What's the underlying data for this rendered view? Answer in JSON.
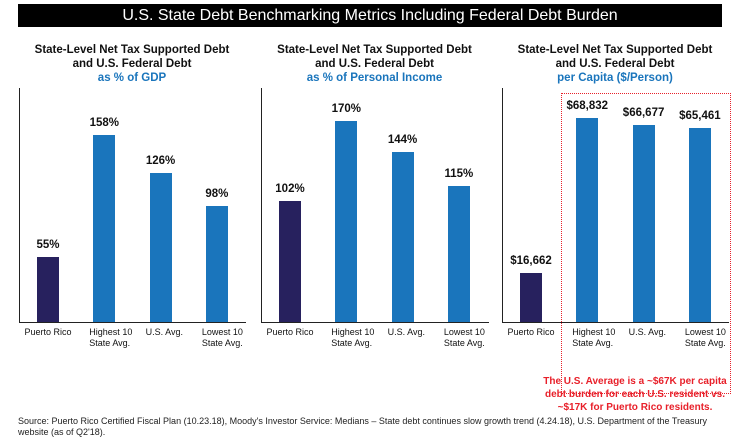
{
  "title": "U.S. State Debt Benchmarking Metrics Including Federal Debt Burden",
  "colors": {
    "puerto_rico": "#27215e",
    "states": "#1a75bc",
    "accent": "#e8202a"
  },
  "chart_data": [
    {
      "type": "bar",
      "title": "State-Level Net Tax Supported Debt and U.S. Federal Debt",
      "subtitle": "as % of GDP",
      "title_line1": "State-Level Net Tax Supported Debt",
      "title_line2": "and U.S. Federal Debt",
      "categories": [
        "Puerto Rico",
        "Highest 10 State Avg.",
        "U.S. Avg.",
        "Lowest 10 State Avg."
      ],
      "values": [
        55,
        158,
        126,
        98
      ],
      "labels": [
        "55%",
        "158%",
        "126%",
        "98%"
      ],
      "ylim": [
        0,
        198
      ]
    },
    {
      "type": "bar",
      "title": "State-Level Net Tax Supported Debt and U.S. Federal Debt",
      "subtitle": "as % of Personal Income",
      "title_line1": "State-Level Net Tax Supported Debt",
      "title_line2": "and U.S. Federal Debt",
      "categories": [
        "Puerto Rico",
        "Highest 10 State Avg.",
        "U.S. Avg.",
        "Lowest 10 State Avg."
      ],
      "values": [
        102,
        170,
        144,
        115
      ],
      "labels": [
        "102%",
        "170%",
        "144%",
        "115%"
      ],
      "ylim": [
        0,
        198
      ]
    },
    {
      "type": "bar",
      "title": "State-Level Net Tax Supported Debt and U.S. Federal Debt",
      "subtitle": "per Capita ($/Person)",
      "title_line1": "State-Level Net Tax Supported Debt",
      "title_line2": "and U.S. Federal Debt",
      "categories": [
        "Puerto Rico",
        "Highest 10 State Avg.",
        "U.S. Avg.",
        "Lowest 10 State Avg."
      ],
      "values": [
        16662,
        68832,
        66677,
        65461
      ],
      "labels": [
        "$16,662",
        "$68,832",
        "$66,677",
        "$65,461"
      ],
      "ylim": [
        0,
        79000
      ]
    }
  ],
  "note": "The U.S. Average is a ~$67K per capita debt burden for each U.S. resident vs. ~$17K for Puerto Rico residents.",
  "source": "Source: Puerto Rico Certified Fiscal Plan (10.23.18), Moody's Investor Service: Medians – State debt continues slow growth trend (4.24.18), U.S. Department of the Treasury website (as of Q2'18)."
}
